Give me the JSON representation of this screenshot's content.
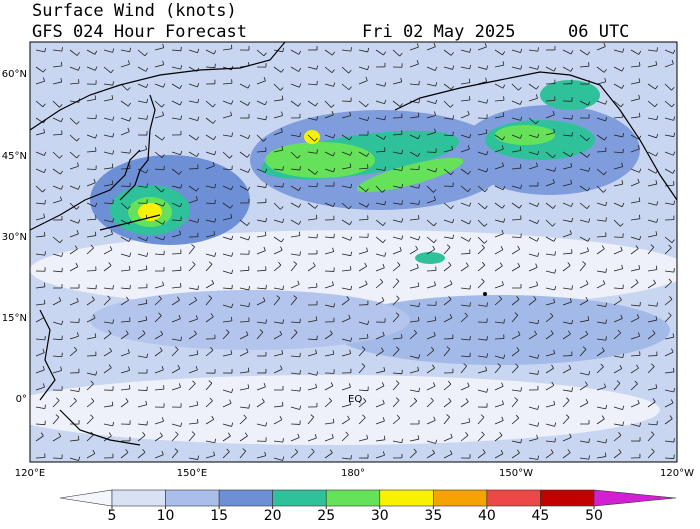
{
  "header": {
    "title": "Surface Wind (knots)",
    "subtitle": "GFS 024 Hour Forecast",
    "date": "Fri 02 May 2025",
    "time": "06 UTC"
  },
  "map": {
    "lat_labels": [
      "60°N",
      "45°N",
      "30°N",
      "15°N",
      "0°"
    ],
    "lon_labels": [
      "120°E",
      "150°E",
      "180°",
      "150°W",
      "120°W"
    ],
    "equator_label": "EQ"
  },
  "colorbar": {
    "ticks": [
      5,
      10,
      15,
      20,
      25,
      30,
      35,
      40,
      45,
      50
    ],
    "colors": [
      "#f4f6fb",
      "#d9e2f4",
      "#a9bfea",
      "#6d8fd6",
      "#2fc29a",
      "#66e25a",
      "#f6f200",
      "#f5a300",
      "#ee4747",
      "#c30000",
      "#d21fd2"
    ]
  }
}
